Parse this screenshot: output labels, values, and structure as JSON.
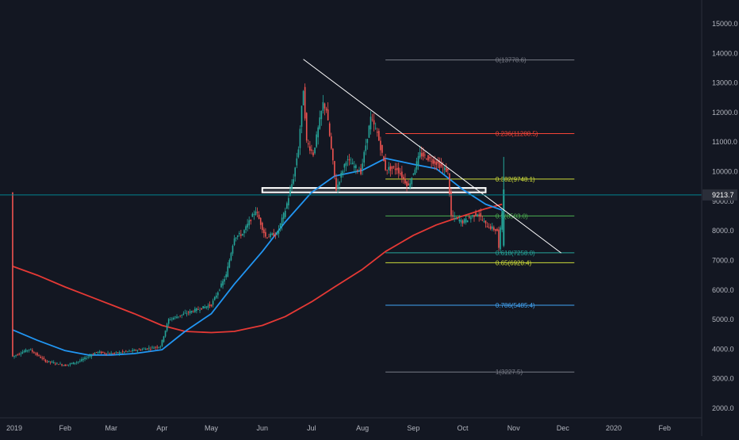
{
  "chart_data": {
    "type": "candlestick",
    "title": "",
    "colors": {
      "background": "#131722",
      "up": "#26a69a",
      "down": "#ef5350",
      "ma_fast": "#2196f3",
      "ma_slow": "#e53935",
      "trendline": "#ffffff",
      "current_price_line": "#00838f",
      "current_price_badge": "#2a2e39"
    },
    "price_axis": {
      "ticks": [
        "15000.0",
        "14000.0",
        "13000.0",
        "12000.0",
        "11000.0",
        "10000.0",
        "9000.0",
        "8000.0",
        "7000.0",
        "6000.0",
        "5000.0",
        "4000.0",
        "3000.0",
        "2000.0"
      ],
      "range": [
        1700,
        15700
      ]
    },
    "time_axis": {
      "ticks": [
        "2019",
        "Feb",
        "Mar",
        "Apr",
        "May",
        "Jun",
        "Jul",
        "Aug",
        "Sep",
        "Oct",
        "Nov",
        "Dec",
        "2020",
        "Feb"
      ]
    },
    "current_price": "9213.7",
    "fibonacci": [
      {
        "label": "0(13778.6)",
        "value": 13778.6,
        "color": "#787b86"
      },
      {
        "label": "0.236(11288.5)",
        "value": 11288.5,
        "color": "#f44336"
      },
      {
        "label": "0.382(9748.1)",
        "value": 9748.1,
        "color": "#cddc39"
      },
      {
        "label": "0.5(8503.0)",
        "value": 8503.0,
        "color": "#4caf50"
      },
      {
        "label": "0.618(7258.0)",
        "value": 7258.0,
        "color": "#26a69a"
      },
      {
        "label": "0.65(6920.4)",
        "value": 6920.4,
        "color": "#cddc39"
      },
      {
        "label": "0.786(5485.4)",
        "value": 5485.4,
        "color": "#42a5f5"
      },
      {
        "label": "1(3227.5)",
        "value": 3227.5,
        "color": "#787b86"
      }
    ],
    "trendline": {
      "from": {
        "date": "2019-06-26",
        "value": 13800
      },
      "to": {
        "date": "2019-11-30",
        "value": 7250
      }
    },
    "resistance_zone": {
      "from": "2019-06-01",
      "to": "2019-10-15",
      "top": 9450,
      "bottom": 9300
    },
    "series": [
      {
        "name": "",
        "kind": "ma_fast",
        "points": [
          [
            "2018-12-31",
            4650
          ],
          [
            "2019-01-15",
            4300
          ],
          [
            "2019-02-01",
            3950
          ],
          [
            "2019-02-15",
            3800
          ],
          [
            "2019-03-01",
            3800
          ],
          [
            "2019-03-15",
            3850
          ],
          [
            "2019-04-01",
            3980
          ],
          [
            "2019-04-15",
            4600
          ],
          [
            "2019-05-01",
            5200
          ],
          [
            "2019-05-15",
            6200
          ],
          [
            "2019-06-01",
            7300
          ],
          [
            "2019-06-15",
            8300
          ],
          [
            "2019-07-01",
            9300
          ],
          [
            "2019-07-15",
            9850
          ],
          [
            "2019-08-01",
            10050
          ],
          [
            "2019-08-15",
            10450
          ],
          [
            "2019-09-01",
            10250
          ],
          [
            "2019-09-15",
            10100
          ],
          [
            "2019-10-01",
            9400
          ],
          [
            "2019-10-15",
            8900
          ],
          [
            "2019-10-25",
            8700
          ]
        ]
      },
      {
        "name": "",
        "kind": "ma_slow",
        "points": [
          [
            "2018-12-31",
            6800
          ],
          [
            "2019-01-15",
            6500
          ],
          [
            "2019-02-01",
            6100
          ],
          [
            "2019-02-15",
            5800
          ],
          [
            "2019-03-01",
            5500
          ],
          [
            "2019-03-15",
            5200
          ],
          [
            "2019-04-01",
            4800
          ],
          [
            "2019-04-15",
            4600
          ],
          [
            "2019-05-01",
            4560
          ],
          [
            "2019-05-15",
            4600
          ],
          [
            "2019-06-01",
            4800
          ],
          [
            "2019-06-15",
            5100
          ],
          [
            "2019-07-01",
            5600
          ],
          [
            "2019-07-15",
            6100
          ],
          [
            "2019-08-01",
            6700
          ],
          [
            "2019-08-15",
            7300
          ],
          [
            "2019-09-01",
            7850
          ],
          [
            "2019-09-15",
            8200
          ],
          [
            "2019-10-01",
            8500
          ],
          [
            "2019-10-15",
            8750
          ],
          [
            "2019-10-25",
            8900
          ]
        ]
      },
      {
        "name": "",
        "kind": "price",
        "points": [
          [
            "2018-12-31",
            3750
          ],
          [
            "2019-01-10",
            4000
          ],
          [
            "2019-01-20",
            3600
          ],
          [
            "2019-02-01",
            3450
          ],
          [
            "2019-02-10",
            3600
          ],
          [
            "2019-02-20",
            3900
          ],
          [
            "2019-03-01",
            3850
          ],
          [
            "2019-03-15",
            3950
          ],
          [
            "2019-03-31",
            4100
          ],
          [
            "2019-04-05",
            5000
          ],
          [
            "2019-04-20",
            5300
          ],
          [
            "2019-05-01",
            5500
          ],
          [
            "2019-05-10",
            6500
          ],
          [
            "2019-05-15",
            7800
          ],
          [
            "2019-05-20",
            7900
          ],
          [
            "2019-05-28",
            8700
          ],
          [
            "2019-06-03",
            7800
          ],
          [
            "2019-06-10",
            7900
          ],
          [
            "2019-06-15",
            8700
          ],
          [
            "2019-06-20",
            9800
          ],
          [
            "2019-06-23",
            10800
          ],
          [
            "2019-06-26",
            12800
          ],
          [
            "2019-06-28",
            11000
          ],
          [
            "2019-07-02",
            10600
          ],
          [
            "2019-07-08",
            12300
          ],
          [
            "2019-07-10",
            12100
          ],
          [
            "2019-07-16",
            9400
          ],
          [
            "2019-07-22",
            10400
          ],
          [
            "2019-07-31",
            10000
          ],
          [
            "2019-08-06",
            11800
          ],
          [
            "2019-08-10",
            11300
          ],
          [
            "2019-08-15",
            10100
          ],
          [
            "2019-08-22",
            10100
          ],
          [
            "2019-08-29",
            9500
          ],
          [
            "2019-09-05",
            10600
          ],
          [
            "2019-09-15",
            10300
          ],
          [
            "2019-09-22",
            10000
          ],
          [
            "2019-09-24",
            8500
          ],
          [
            "2019-10-01",
            8300
          ],
          [
            "2019-10-10",
            8600
          ],
          [
            "2019-10-15",
            8200
          ],
          [
            "2019-10-22",
            8000
          ],
          [
            "2019-10-23",
            7400
          ],
          [
            "2019-10-25",
            8700
          ],
          [
            "2019-10-26",
            9300
          ]
        ]
      }
    ]
  }
}
